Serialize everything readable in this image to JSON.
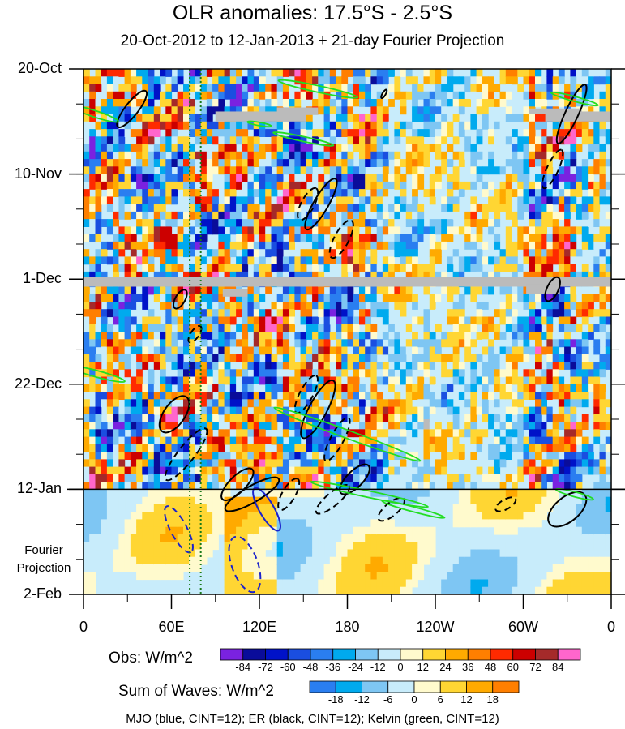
{
  "chart_data": {
    "type": "heatmap",
    "title": "OLR anomalies: 17.5°S - 2.5°S",
    "subtitle": "20-Oct-2012 to 12-Jan-2013 + 21-day Fourier Projection",
    "x_ticks": [
      "0",
      "60E",
      "120E",
      "180",
      "120W",
      "60W",
      "0"
    ],
    "x_tick_values": [
      0,
      60,
      120,
      180,
      240,
      300,
      360
    ],
    "y_ticks": [
      "20-Oct",
      "10-Nov",
      "1-Dec",
      "22-Dec",
      "12-Jan",
      "2-Feb"
    ],
    "y_tick_days": [
      0,
      21,
      42,
      63,
      84,
      105
    ],
    "xlim": [
      0,
      360
    ],
    "ylim_days": [
      0,
      105
    ],
    "projection_label": "Fourier Projection",
    "observation_end_day": 84,
    "reference_lines_lon": [
      72.5,
      80
    ],
    "obs_colorbar": {
      "title": "Obs: W/m^2",
      "labels": [
        "-84",
        "-72",
        "-60",
        "-48",
        "-36",
        "-24",
        "-12",
        "0",
        "12",
        "24",
        "36",
        "48",
        "60",
        "72",
        "84"
      ],
      "colors": [
        "#7a22e0",
        "#0a0c9a",
        "#0012c8",
        "#1a4ee0",
        "#2a7ef0",
        "#00aaee",
        "#7ec6f3",
        "#c8ecfb",
        "#fffacd",
        "#ffd633",
        "#ffaa00",
        "#ff7f00",
        "#ff2a00",
        "#cc0000",
        "#a52a2a",
        "#ff66cc"
      ]
    },
    "wave_colorbar": {
      "title": "Sum of Waves: W/m^2",
      "labels": [
        "-18",
        "-12",
        "-6",
        "0",
        "6",
        "12",
        "18"
      ],
      "colors": [
        "#2a7ef0",
        "#00aaee",
        "#7ec6f3",
        "#c8ecfb",
        "#fffacd",
        "#ffd633",
        "#ffaa00",
        "#ff7f00"
      ]
    },
    "legend_text": "MJO (blue, CINT=12); ER (black, CINT=12); Kelvin (green, CINT=12)",
    "overlay_colors": {
      "mjo": "#1a22cc",
      "er": "#000000",
      "kelvin": "#22dd22",
      "missing": "#bbbbbb"
    }
  }
}
